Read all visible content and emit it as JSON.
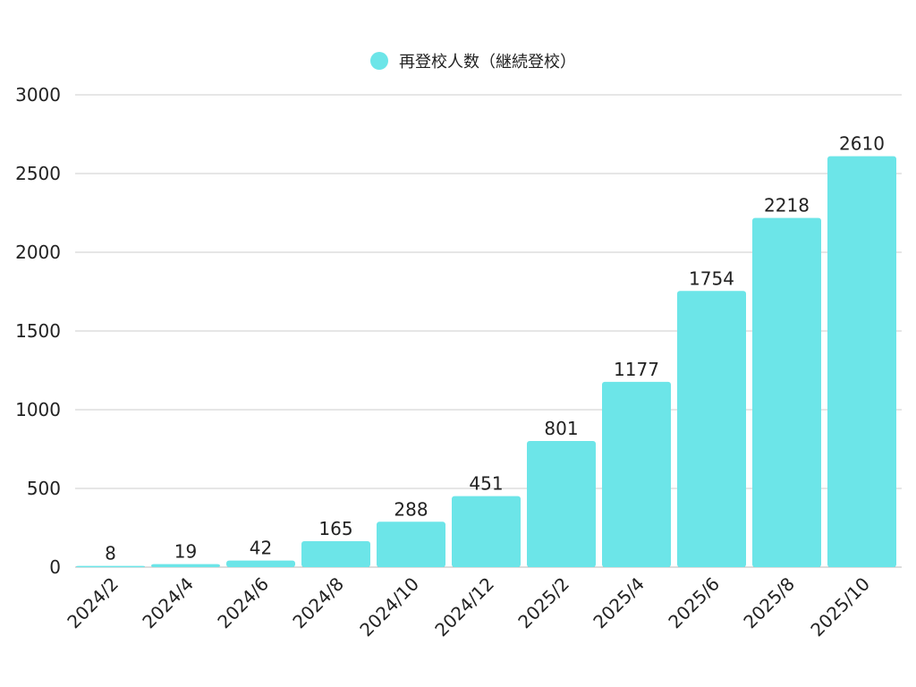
{
  "chart_data": {
    "type": "bar",
    "categories": [
      "2024/2",
      "2024/4",
      "2024/6",
      "2024/8",
      "2024/10",
      "2024/12",
      "2025/2",
      "2025/4",
      "2025/6",
      "2025/8",
      "2025/10"
    ],
    "series": [
      {
        "name": "再登校人数（継続登校）",
        "values": [
          8,
          19,
          42,
          165,
          288,
          451,
          801,
          1177,
          1754,
          2218,
          2610
        ]
      }
    ],
    "title": "",
    "xlabel": "",
    "ylabel": "",
    "ylim": [
      0,
      3000
    ],
    "yticks": [
      0,
      500,
      1000,
      1500,
      2000,
      2500,
      3000
    ],
    "grid": true,
    "legend_position": "top-center",
    "colors": {
      "bar": "#6ce5e8",
      "grid": "#cccccc",
      "axis": "#bbbbbb",
      "text": "#222222"
    }
  }
}
